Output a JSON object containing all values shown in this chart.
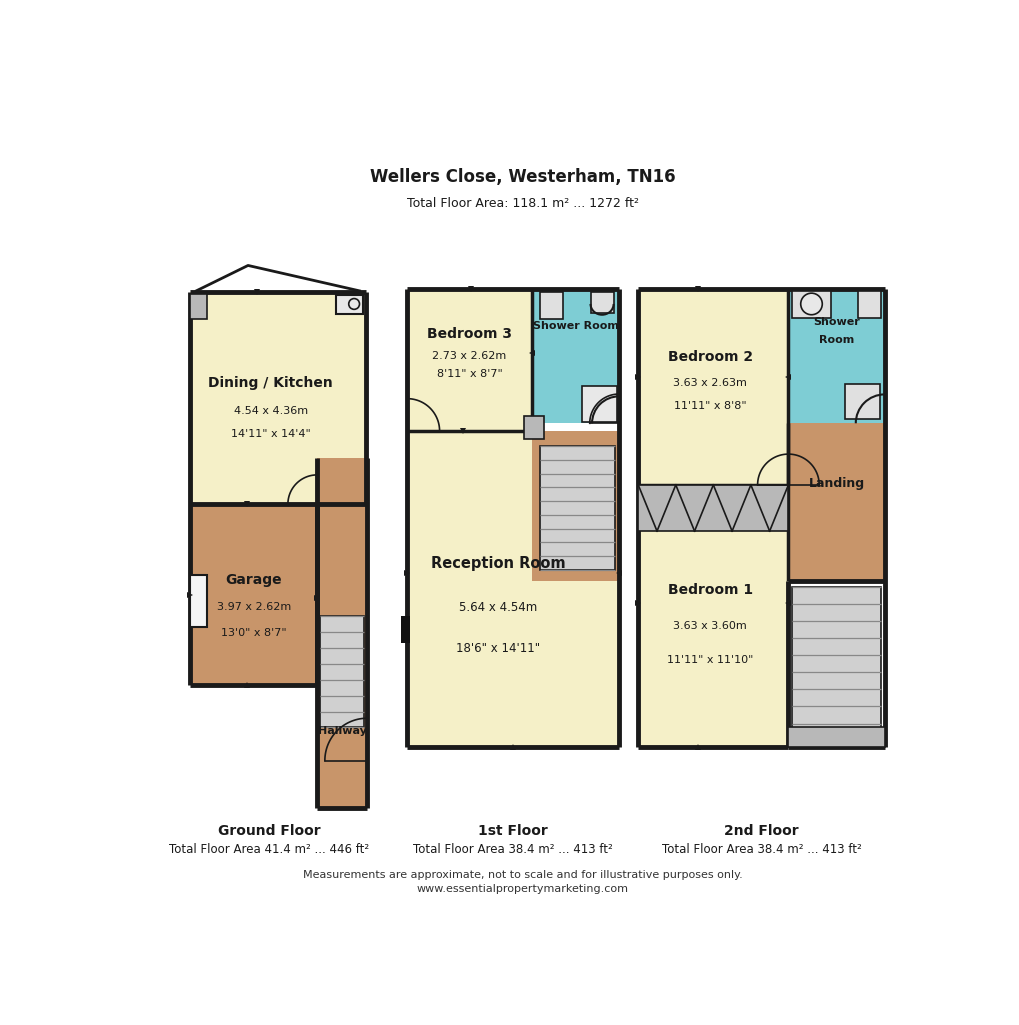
{
  "title": "Wellers Close, Westerham, TN16",
  "total_area": "Total Floor Area: 118.1 m² ... 1272 ft²",
  "bg_color": "#ffffff",
  "wall_color": "#1a1a1a",
  "floor_yellow": "#f5f0c8",
  "floor_brown": "#c8956a",
  "floor_blue": "#7ecdd4",
  "floor_gray": "#b8b8b8",
  "floor_lgray": "#d0d0d0",
  "ground_floor_label": "Ground Floor",
  "ground_area": "Total Floor Area 41.4 m² ... 446 ft²",
  "first_floor_label": "1st Floor",
  "first_area": "Total Floor Area 38.4 m² ... 413 ft²",
  "second_floor_label": "2nd Floor",
  "second_area": "Total Floor Area 38.4 m² ... 413 ft²",
  "footer1": "Measurements are approximate, not to scale and for illustrative purposes only.",
  "footer2": "www.essentialpropertymarketing.com"
}
